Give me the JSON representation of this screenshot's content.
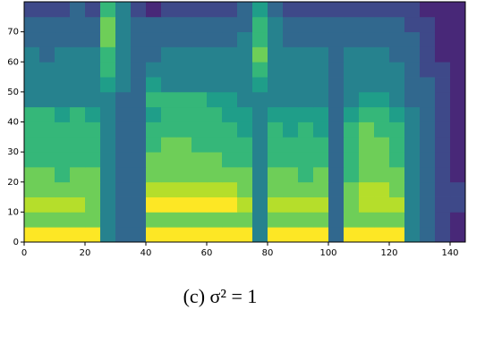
{
  "chart_data": {
    "type": "heatmap",
    "colors": [
      "#440154",
      "#482878",
      "#3e4989",
      "#31688e",
      "#26828e",
      "#1f9e89",
      "#35b779",
      "#6ece58",
      "#b5de2b",
      "#fde725"
    ],
    "xbins": [
      0,
      5,
      10,
      15,
      20,
      25,
      30,
      35,
      40,
      45,
      50,
      55,
      60,
      65,
      70,
      75,
      80,
      85,
      90,
      95,
      100,
      105,
      110,
      115,
      120,
      125,
      130,
      135,
      140,
      145
    ],
    "ybins": [
      0,
      5,
      10,
      15,
      20,
      25,
      30,
      35,
      40,
      45,
      50,
      55,
      60,
      65,
      70,
      75,
      80
    ],
    "z": [
      [
        9,
        9,
        9,
        9,
        9,
        4,
        3,
        3,
        9,
        9,
        9,
        9,
        9,
        9,
        9,
        4,
        9,
        9,
        9,
        9,
        3,
        9,
        9,
        9,
        9,
        4,
        3,
        2,
        1
      ],
      [
        7,
        7,
        7,
        7,
        7,
        4,
        3,
        3,
        7,
        7,
        7,
        7,
        7,
        7,
        7,
        4,
        7,
        7,
        7,
        7,
        3,
        7,
        7,
        7,
        7,
        4,
        3,
        2,
        1
      ],
      [
        8,
        8,
        8,
        8,
        7,
        4,
        3,
        3,
        9,
        9,
        9,
        9,
        9,
        9,
        8,
        4,
        8,
        8,
        8,
        8,
        3,
        7,
        8,
        8,
        8,
        4,
        3,
        2,
        2
      ],
      [
        7,
        7,
        7,
        7,
        7,
        4,
        3,
        3,
        8,
        8,
        8,
        8,
        8,
        8,
        7,
        4,
        7,
        7,
        7,
        7,
        3,
        7,
        8,
        8,
        7,
        4,
        3,
        2,
        2
      ],
      [
        7,
        7,
        6,
        7,
        7,
        4,
        3,
        3,
        7,
        7,
        7,
        7,
        7,
        7,
        7,
        4,
        7,
        7,
        6,
        7,
        3,
        6,
        7,
        7,
        7,
        4,
        3,
        2,
        1
      ],
      [
        6,
        6,
        6,
        6,
        6,
        4,
        3,
        3,
        7,
        7,
        7,
        7,
        7,
        6,
        6,
        4,
        6,
        6,
        6,
        6,
        3,
        6,
        7,
        7,
        6,
        4,
        3,
        2,
        1
      ],
      [
        6,
        6,
        6,
        6,
        6,
        4,
        3,
        3,
        6,
        7,
        7,
        6,
        6,
        6,
        6,
        4,
        6,
        6,
        6,
        6,
        3,
        6,
        7,
        7,
        6,
        4,
        3,
        2,
        1
      ],
      [
        6,
        6,
        6,
        6,
        6,
        4,
        3,
        3,
        6,
        6,
        6,
        6,
        6,
        6,
        5,
        4,
        6,
        5,
        6,
        5,
        3,
        6,
        7,
        6,
        6,
        4,
        3,
        2,
        1
      ],
      [
        6,
        6,
        5,
        6,
        5,
        4,
        3,
        3,
        5,
        6,
        6,
        6,
        6,
        5,
        5,
        4,
        5,
        5,
        5,
        5,
        3,
        5,
        6,
        6,
        5,
        4,
        3,
        2,
        1
      ],
      [
        4,
        4,
        4,
        4,
        4,
        4,
        3,
        3,
        6,
        6,
        6,
        6,
        5,
        5,
        4,
        4,
        4,
        4,
        4,
        4,
        3,
        4,
        5,
        5,
        4,
        3,
        3,
        2,
        1
      ],
      [
        4,
        4,
        4,
        4,
        4,
        5,
        4,
        3,
        5,
        4,
        4,
        4,
        4,
        4,
        4,
        5,
        4,
        4,
        4,
        4,
        3,
        4,
        4,
        4,
        4,
        3,
        3,
        2,
        1
      ],
      [
        4,
        4,
        4,
        4,
        4,
        6,
        4,
        3,
        4,
        4,
        4,
        4,
        4,
        4,
        4,
        6,
        4,
        4,
        4,
        4,
        3,
        4,
        4,
        4,
        4,
        3,
        2,
        2,
        1
      ],
      [
        4,
        3,
        4,
        4,
        4,
        6,
        4,
        3,
        3,
        4,
        4,
        4,
        4,
        4,
        4,
        7,
        4,
        4,
        4,
        4,
        3,
        4,
        4,
        4,
        3,
        3,
        2,
        1,
        1
      ],
      [
        3,
        3,
        3,
        3,
        3,
        7,
        4,
        3,
        3,
        3,
        3,
        3,
        3,
        3,
        4,
        6,
        4,
        3,
        3,
        3,
        3,
        3,
        3,
        3,
        3,
        3,
        2,
        1,
        1
      ],
      [
        3,
        3,
        3,
        3,
        3,
        7,
        4,
        3,
        3,
        3,
        3,
        3,
        3,
        3,
        3,
        6,
        4,
        3,
        3,
        3,
        3,
        3,
        3,
        3,
        3,
        2,
        2,
        1,
        1
      ],
      [
        2,
        2,
        2,
        3,
        2,
        6,
        4,
        2,
        1,
        2,
        2,
        2,
        2,
        2,
        3,
        5,
        3,
        2,
        2,
        2,
        2,
        2,
        2,
        2,
        2,
        2,
        1,
        1,
        1
      ]
    ],
    "zlim": [
      0,
      9
    ],
    "xlim": [
      0,
      145
    ],
    "ylim": [
      0,
      80
    ],
    "xticks": [
      0,
      20,
      40,
      60,
      80,
      100,
      120,
      140
    ],
    "yticks": [
      0,
      10,
      20,
      30,
      40,
      50,
      60,
      70
    ],
    "caption": "(c) σ² = 1"
  }
}
